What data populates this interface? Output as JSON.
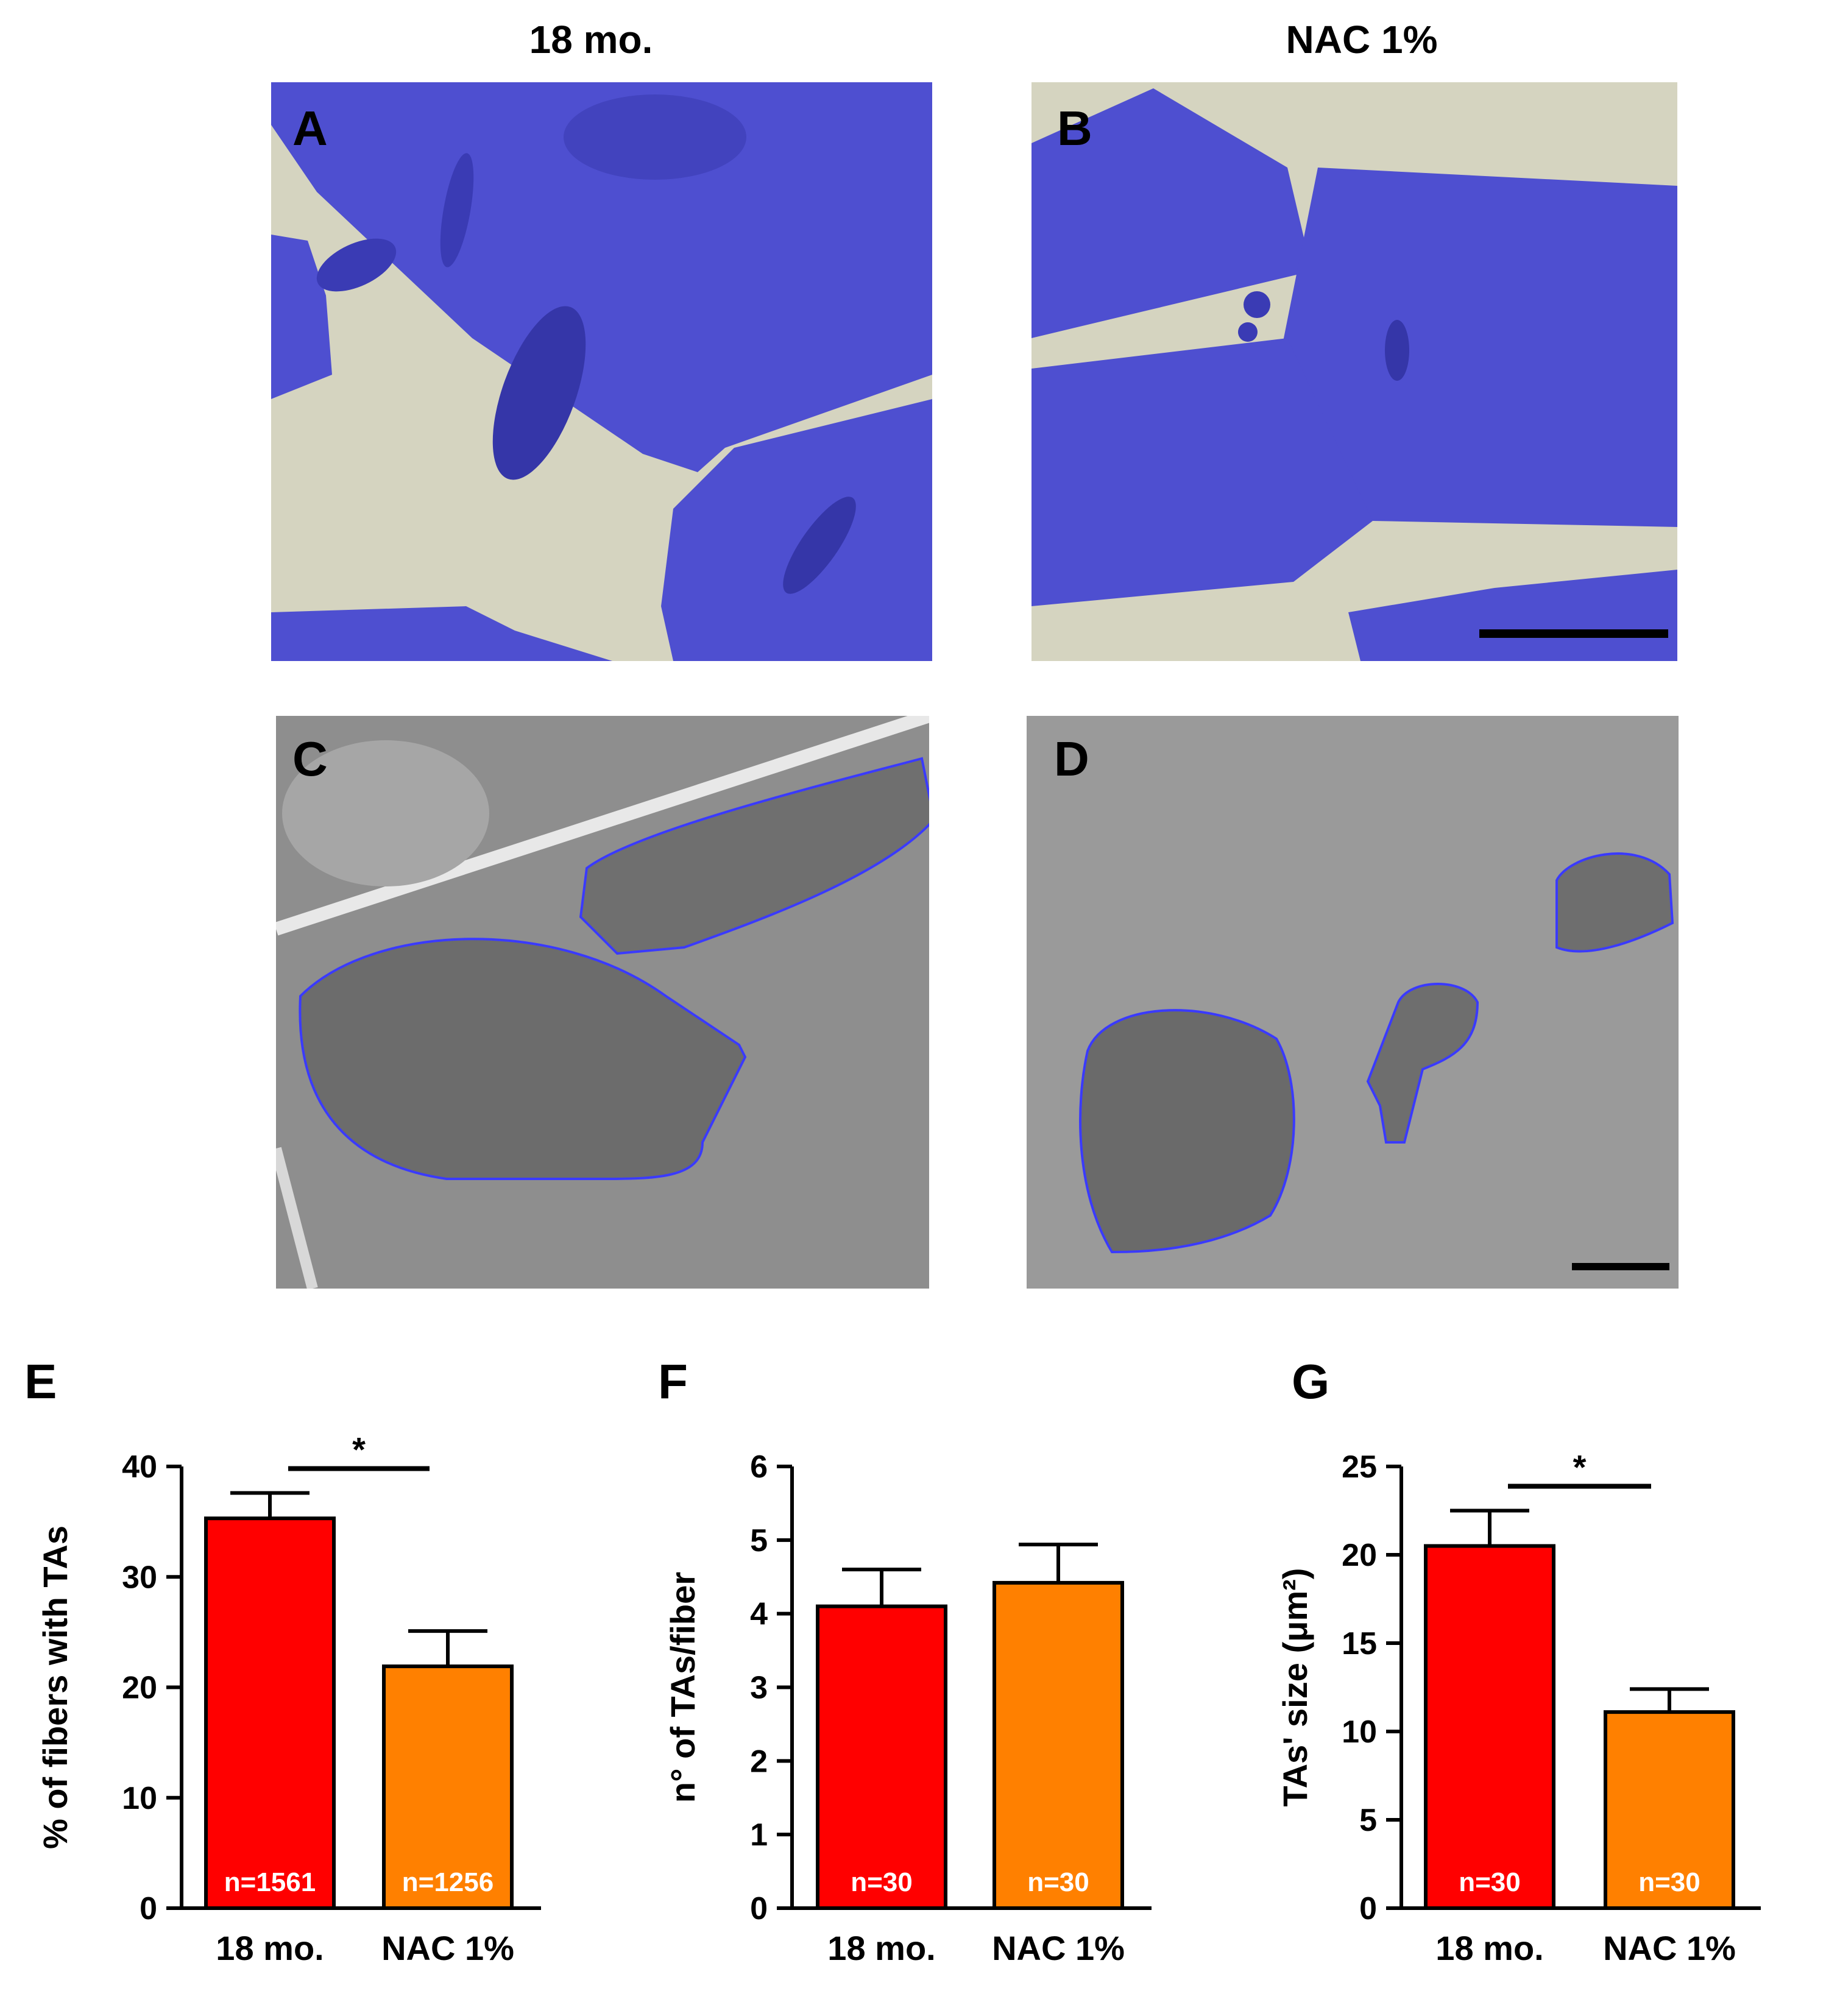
{
  "columns": {
    "left": "18 mo.",
    "right": "NAC 1%"
  },
  "panels": {
    "a": "A",
    "b": "B",
    "c": "C",
    "d": "D"
  },
  "colors": {
    "stain": "#4e4fd0",
    "stain_dark": "#3536a8",
    "gap": "#d5d4c0",
    "em_bg": "#8c8c8c",
    "outline": "#3a3aff",
    "bar_18mo": "#ff0000",
    "bar_nac": "#ff8000"
  },
  "chart_data": [
    {
      "panel": "E",
      "type": "bar",
      "categories": [
        "18 mo.",
        "NAC 1%"
      ],
      "values": [
        35.3,
        21.9
      ],
      "errors": [
        2.3,
        3.2
      ],
      "n_labels": [
        "n=1561",
        "n=1256"
      ],
      "ylabel": "% of fibers with TAs",
      "ylim": [
        0,
        40
      ],
      "yticks": [
        "0",
        "10",
        "20",
        "30",
        "40"
      ],
      "significance": "*"
    },
    {
      "panel": "F",
      "type": "bar",
      "categories": [
        "18 mo.",
        "NAC 1%"
      ],
      "values": [
        4.1,
        4.42
      ],
      "errors": [
        0.5,
        0.52
      ],
      "n_labels": [
        "n=30",
        "n=30"
      ],
      "ylabel": "n° of TAs/fiber",
      "ylim": [
        0,
        6
      ],
      "yticks": [
        "0",
        "1",
        "2",
        "3",
        "4",
        "5",
        "6"
      ],
      "significance": ""
    },
    {
      "panel": "G",
      "type": "bar",
      "categories": [
        "18 mo.",
        "NAC 1%"
      ],
      "values": [
        20.5,
        11.1
      ],
      "errors": [
        2.0,
        1.3
      ],
      "n_labels": [
        "n=30",
        "n=30"
      ],
      "ylabel": "TAs' size (μm²)",
      "ylim": [
        0,
        25
      ],
      "yticks": [
        "0",
        "5",
        "10",
        "15",
        "20",
        "25"
      ],
      "significance": "*"
    }
  ]
}
